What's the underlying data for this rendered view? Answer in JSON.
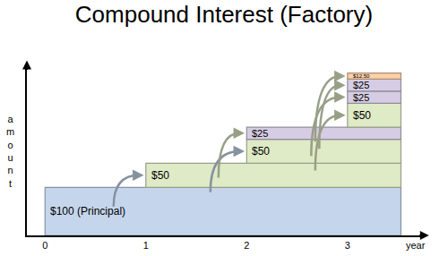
{
  "chart_data": {
    "type": "bar",
    "title": "Compound Interest (Factory)",
    "x_label": "year",
    "y_label": "amount",
    "stacked": true,
    "data_labels": true,
    "tick_labels": "x",
    "grid": false,
    "xlim": [
      -0.18,
      3.73
    ],
    "xticks": [
      0,
      1,
      2,
      3
    ],
    "ylim": [
      0,
      350
    ],
    "starts": [
      0,
      1,
      2,
      2,
      3,
      3,
      3,
      3
    ],
    "end": 3.53,
    "values": [
      100,
      50,
      50,
      25,
      50,
      25,
      25,
      12.5
    ],
    "value_labels": [
      "$100 (Principal)",
      "$50",
      "$50",
      "$25",
      "$50",
      "$25",
      "$25",
      "$12.50"
    ],
    "colors": [
      "#c5d6ec",
      "#dfeac6",
      "#dfeac6",
      "#d6cde4",
      "#dfeac6",
      "#d6cde4",
      "#d6cde4",
      "#fbcfa8"
    ]
  }
}
